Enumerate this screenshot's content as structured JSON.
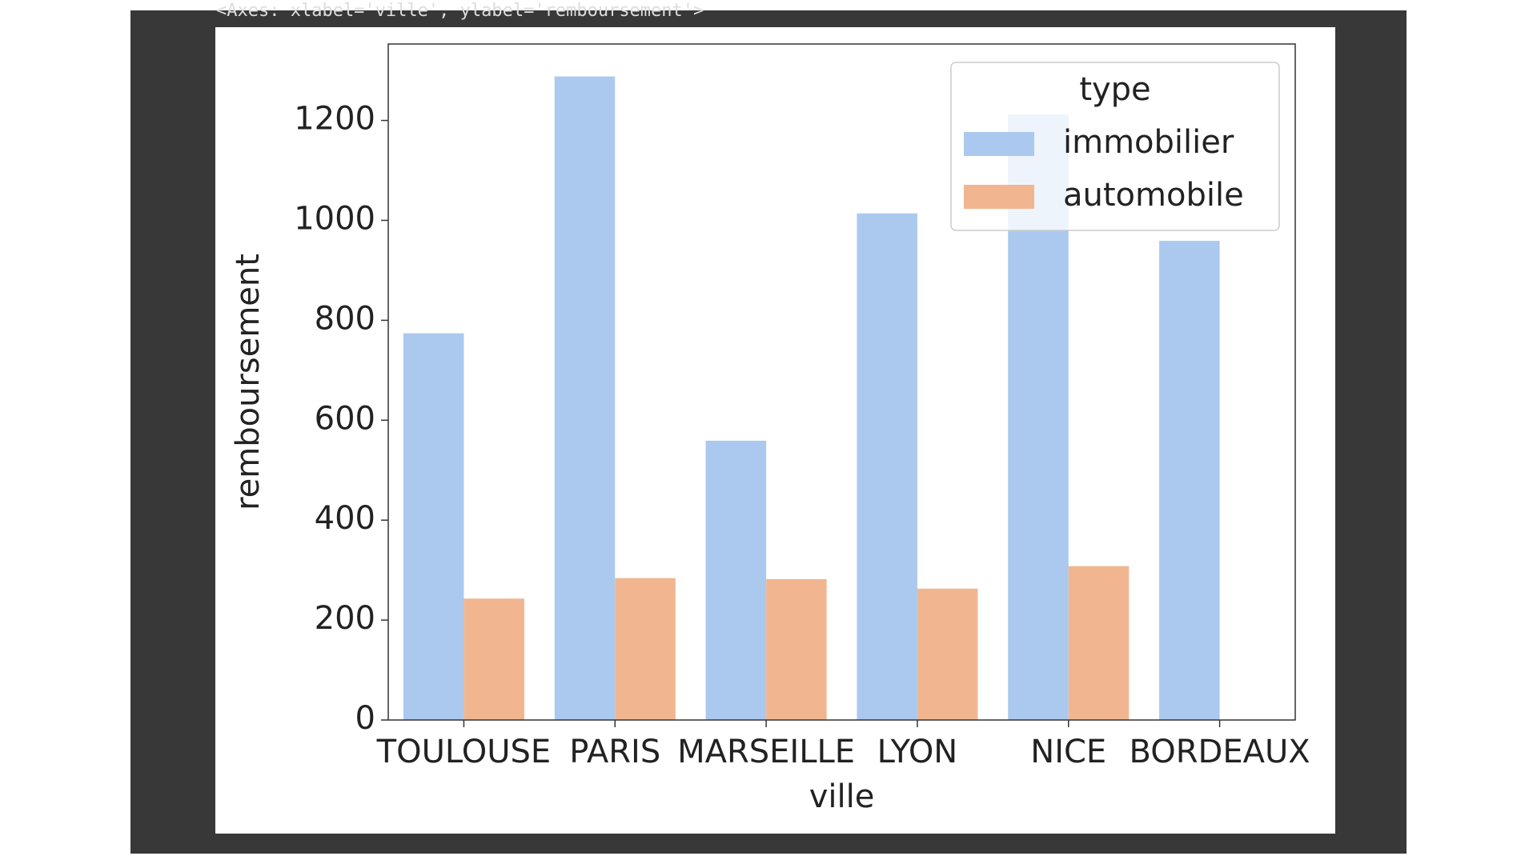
{
  "output_text": "<Axes: xlabel='ville', ylabel='remboursement'>",
  "chart_data": {
    "type": "bar",
    "xlabel": "ville",
    "ylabel": "remboursement",
    "categories": [
      "TOULOUSE",
      "PARIS",
      "MARSEILLE",
      "LYON",
      "NICE",
      "BORDEAUX"
    ],
    "series": [
      {
        "name": "immobilier",
        "color": "#abc9ee",
        "values": [
          774,
          1288,
          559,
          1014,
          1212,
          959
        ]
      },
      {
        "name": "automobile",
        "color": "#f1b690",
        "values": [
          243,
          284,
          282,
          263,
          308,
          null
        ]
      }
    ],
    "legend_title": "type",
    "legend": "upper right",
    "ylim": [
      0,
      1353
    ],
    "yticks": [
      0,
      200,
      400,
      600,
      800,
      1000,
      1200
    ],
    "grid": false
  }
}
